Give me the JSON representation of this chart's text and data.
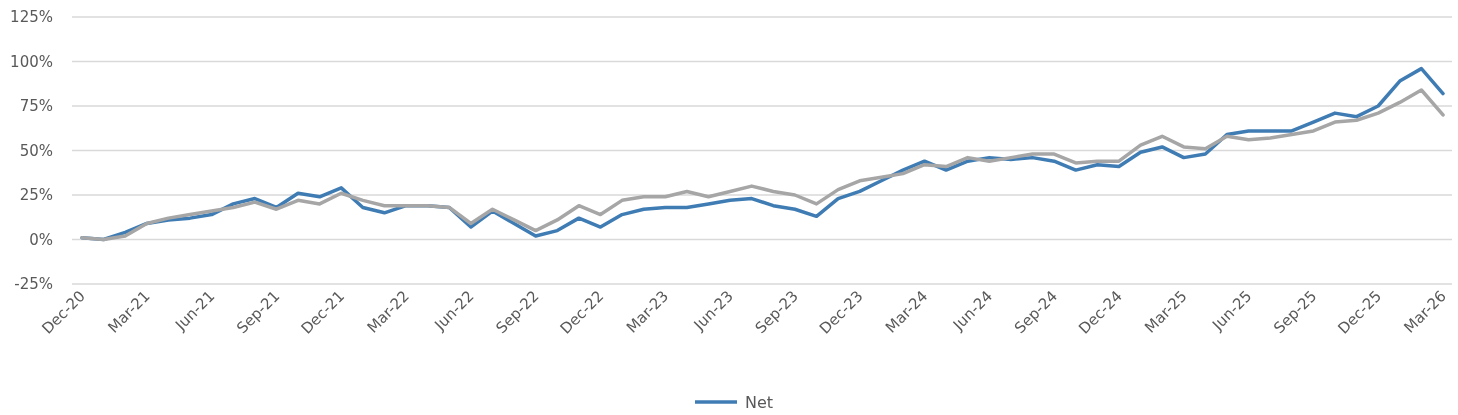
{
  "chart_data": {
    "type": "line",
    "categories": [
      "Dec-20",
      null,
      null,
      "Mar-21",
      null,
      null,
      "Jun-21",
      null,
      null,
      "Sep-21",
      null,
      null,
      "Dec-21",
      null,
      null,
      "Mar-22",
      null,
      null,
      "Jun-22",
      null,
      null,
      "Sep-22",
      null,
      null,
      "Dec-22",
      null,
      null,
      "Mar-23",
      null,
      null,
      "Jun-23",
      null,
      null,
      "Sep-23",
      null,
      null,
      "Dec-23",
      null,
      null,
      "Mar-24",
      null,
      null,
      "Jun-24",
      null,
      null,
      "Sep-24",
      null,
      null,
      "Dec-24",
      null,
      null,
      "Mar-25",
      null,
      null,
      "Jun-25",
      null,
      null,
      "Sep-25",
      null,
      null,
      "Dec-25",
      null,
      null,
      "Mar-26"
    ],
    "series": [
      {
        "name": "Net",
        "color": "#3f7cb4",
        "values": [
          1,
          0,
          4,
          9,
          11,
          12,
          14,
          20,
          23,
          18,
          26,
          24,
          29,
          18,
          15,
          19,
          19,
          18,
          7,
          16,
          9,
          2,
          5,
          12,
          7,
          14,
          17,
          18,
          18,
          20,
          22,
          23,
          19,
          17,
          13,
          23,
          27,
          33,
          39,
          44,
          39,
          44,
          46,
          45,
          46,
          44,
          39,
          42,
          41,
          49,
          52,
          46,
          48,
          59,
          61,
          61,
          61,
          66,
          71,
          69,
          75,
          89,
          96,
          82
        ]
      },
      {
        "color": "#a6a6a6",
        "values": [
          1,
          0,
          2,
          9,
          12,
          14,
          16,
          18,
          21,
          17,
          22,
          20,
          26,
          22,
          19,
          19,
          19,
          18,
          9,
          17,
          11,
          5,
          11,
          19,
          14,
          22,
          24,
          24,
          27,
          24,
          27,
          30,
          27,
          25,
          20,
          28,
          33,
          35,
          37,
          42,
          41,
          46,
          44,
          46,
          48,
          48,
          43,
          44,
          44,
          53,
          58,
          52,
          51,
          58,
          56,
          57,
          59,
          61,
          66,
          67,
          71,
          77,
          84,
          70
        ]
      }
    ],
    "ylim": [
      -25,
      125
    ],
    "yticks": [
      {
        "value": -25,
        "label": "-25%"
      },
      {
        "value": 0,
        "label": "0%"
      },
      {
        "value": 25,
        "label": "25%"
      },
      {
        "value": 50,
        "label": "50%"
      },
      {
        "value": 75,
        "label": "75%"
      },
      {
        "value": 100,
        "label": "100%"
      },
      {
        "value": 125,
        "label": "125%"
      }
    ],
    "grid": "y",
    "legend": "bottom",
    "marker": "none",
    "line_style": "solid"
  }
}
